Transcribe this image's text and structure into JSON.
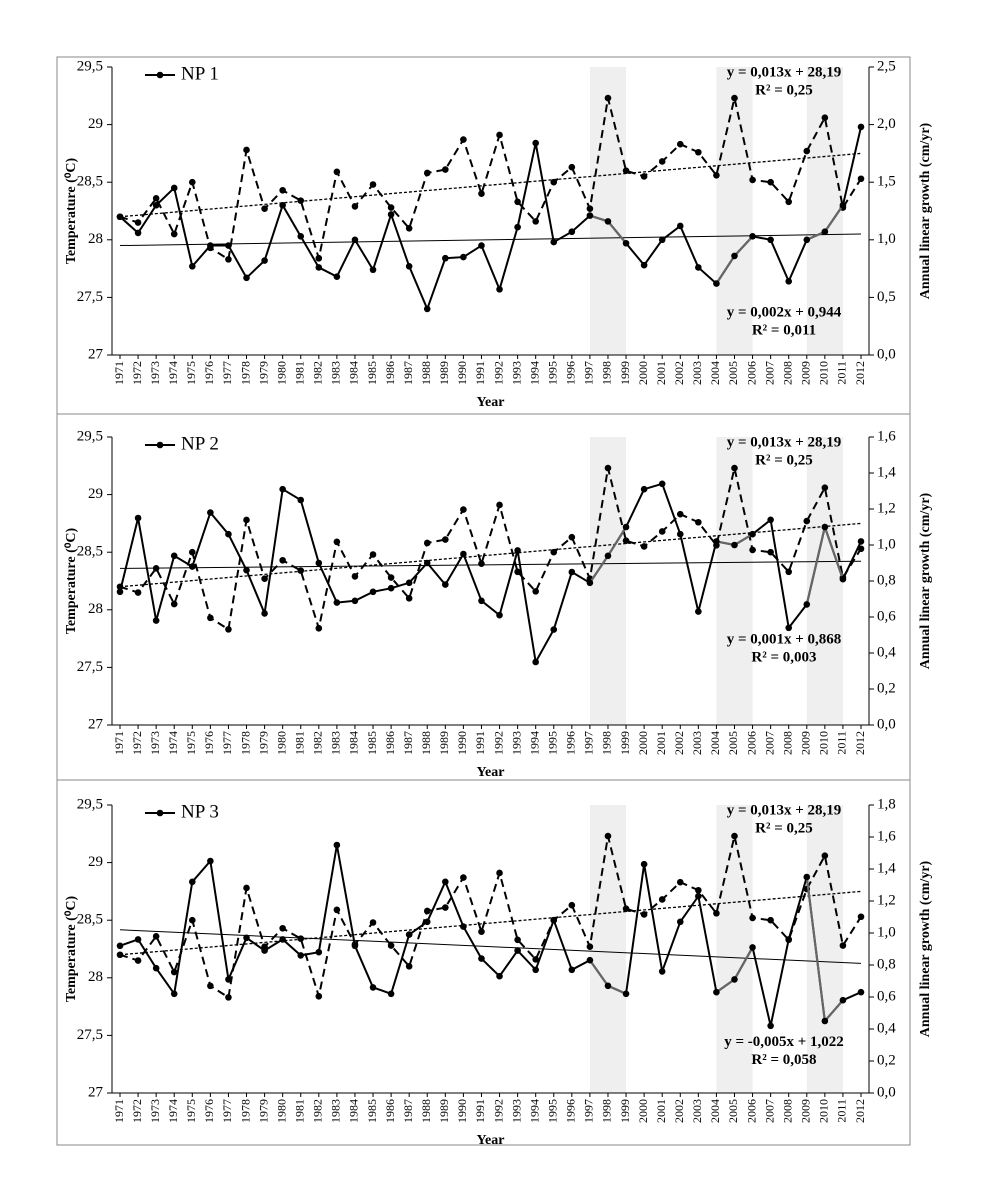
{
  "chart_data": [
    {
      "type": "line",
      "categories": [
        "1971",
        "1972",
        "1973",
        "1974",
        "1975",
        "1976",
        "1977",
        "1978",
        "1979",
        "1980",
        "1981",
        "1982",
        "1983",
        "1984",
        "1985",
        "1986",
        "1987",
        "1988",
        "1989",
        "1990",
        "1991",
        "1992",
        "1993",
        "1994",
        "1995",
        "1996",
        "1997",
        "1998",
        "1999",
        "2000",
        "2001",
        "2002",
        "2003",
        "2004",
        "2005",
        "2006",
        "2007",
        "2008",
        "2009",
        "2010",
        "2011",
        "2012"
      ],
      "x_label": "Year",
      "y_label": "Temperature (⁰C)",
      "y2_label": "Annual linear growth (cm/yr)",
      "ylim": [
        27,
        29.5
      ],
      "yticks": [
        27,
        {
          "value": 27.5,
          "label": "27,5"
        },
        28,
        {
          "value": 28.5,
          "label": "28,5"
        },
        29,
        {
          "value": 29.5,
          "label": "29,5"
        }
      ],
      "y2lim": [
        0,
        2.5
      ],
      "y2ticks": [
        {
          "value": 0,
          "label": "0,0"
        },
        {
          "value": 0.5,
          "label": "0,5"
        },
        {
          "value": 1,
          "label": "1,0"
        },
        {
          "value": 1.5,
          "label": "1,5"
        },
        {
          "value": 2,
          "label": "2,0"
        },
        {
          "value": 2.5,
          "label": "2,5"
        }
      ],
      "legend": "top-left",
      "shaded_ranges": [
        [
          "1997",
          "1999"
        ],
        [
          "2004",
          "2006"
        ],
        [
          "2009",
          "2011"
        ]
      ],
      "shade_color": "#efefef",
      "highlight_color": "#666666",
      "series": [
        {
          "color": "#000000",
          "dash": "dashed",
          "values": [
            28.2,
            28.15,
            28.36,
            28.05,
            28.5,
            27.93,
            27.83,
            28.78,
            28.27,
            28.43,
            28.34,
            27.84,
            28.59,
            28.29,
            28.48,
            28.28,
            28.1,
            28.58,
            28.61,
            28.87,
            28.4,
            28.91,
            28.33,
            28.16,
            28.5,
            28.63,
            28.27,
            29.23,
            28.6,
            28.55,
            28.68,
            28.83,
            28.76,
            28.56,
            29.23,
            28.52,
            28.5,
            28.33,
            28.77,
            29.06,
            28.28,
            28.53
          ],
          "trend": {
            "values": [
              28.2,
              28.75
            ],
            "dash": "dotted",
            "equation": "y = 0,013x + 28,19",
            "r_squared": "R² = 0,25"
          }
        },
        {
          "name": "NP 1",
          "color": "#000000",
          "axis": "y2",
          "values": [
            1.2,
            1.06,
            1.3,
            1.45,
            0.77,
            0.95,
            0.95,
            0.67,
            0.82,
            1.3,
            1.03,
            0.76,
            0.68,
            1.0,
            0.74,
            1.22,
            0.77,
            0.4,
            0.84,
            0.85,
            0.95,
            0.57,
            1.11,
            1.84,
            0.98,
            1.07,
            1.21,
            1.16,
            0.97,
            0.78,
            1.0,
            1.12,
            0.76,
            0.62,
            0.86,
            1.03,
            1.0,
            0.64,
            1.0,
            1.07,
            1.3,
            1.98
          ],
          "trend": {
            "values": [
              0.95,
              1.05
            ],
            "equation": "y = 0,002x + 0,944",
            "r_squared": "R² = 0,011"
          }
        }
      ]
    },
    {
      "type": "line",
      "categories": [
        "1971",
        "1972",
        "1973",
        "1974",
        "1975",
        "1976",
        "1977",
        "1978",
        "1979",
        "1980",
        "1981",
        "1982",
        "1983",
        "1984",
        "1985",
        "1986",
        "1987",
        "1988",
        "1989",
        "1990",
        "1991",
        "1992",
        "1993",
        "1994",
        "1995",
        "1996",
        "1997",
        "1998",
        "1999",
        "2000",
        "2001",
        "2002",
        "2003",
        "2004",
        "2005",
        "2006",
        "2007",
        "2008",
        "2009",
        "2010",
        "2011",
        "2012"
      ],
      "x_label": "Year",
      "y_label": "Temperature (⁰C)",
      "y2_label": "Annual linear growth (cm/yr)",
      "ylim": [
        27,
        29.5
      ],
      "yticks": [
        27,
        {
          "value": 27.5,
          "label": "27,5"
        },
        28,
        {
          "value": 28.5,
          "label": "28,5"
        },
        29,
        {
          "value": 29.5,
          "label": "29,5"
        }
      ],
      "y2lim": [
        0,
        1.6
      ],
      "y2ticks": [
        {
          "value": 0,
          "label": "0,0"
        },
        {
          "value": 0.2,
          "label": "0,2"
        },
        {
          "value": 0.4,
          "label": "0,4"
        },
        {
          "value": 0.6,
          "label": "0,6"
        },
        {
          "value": 0.8,
          "label": "0,8"
        },
        {
          "value": 1,
          "label": "1,0"
        },
        {
          "value": 1.2,
          "label": "1,2"
        },
        {
          "value": 1.4,
          "label": "1,4"
        },
        {
          "value": 1.6,
          "label": "1,6"
        }
      ],
      "legend": "top-left",
      "shaded_ranges": [
        [
          "1997",
          "1999"
        ],
        [
          "2004",
          "2006"
        ],
        [
          "2009",
          "2011"
        ]
      ],
      "shade_color": "#efefef",
      "highlight_color": "#666666",
      "series": [
        {
          "color": "#000000",
          "dash": "dashed",
          "values": [
            28.2,
            28.15,
            28.36,
            28.05,
            28.5,
            27.93,
            27.83,
            28.78,
            28.27,
            28.43,
            28.34,
            27.84,
            28.59,
            28.29,
            28.48,
            28.28,
            28.1,
            28.58,
            28.61,
            28.87,
            28.4,
            28.91,
            28.33,
            28.16,
            28.5,
            28.63,
            28.27,
            29.23,
            28.6,
            28.55,
            28.68,
            28.83,
            28.76,
            28.56,
            29.23,
            28.52,
            28.5,
            28.33,
            28.77,
            29.06,
            28.28,
            28.53
          ],
          "trend": {
            "values": [
              28.2,
              28.75
            ],
            "dash": "dotted",
            "equation": "y = 0,013x + 28,19",
            "r_squared": "R² = 0,25"
          }
        },
        {
          "name": "NP 2",
          "color": "#000000",
          "axis": "y2",
          "values": [
            0.74,
            1.15,
            0.58,
            0.94,
            0.88,
            1.18,
            1.06,
            0.86,
            0.62,
            1.31,
            1.25,
            0.9,
            0.68,
            0.69,
            0.74,
            0.76,
            0.79,
            0.9,
            0.78,
            0.95,
            0.69,
            0.61,
            0.97,
            0.35,
            0.53,
            0.85,
            0.79,
            0.94,
            1.1,
            1.31,
            1.34,
            1.06,
            0.63,
            1.02,
            1.0,
            1.06,
            1.14,
            0.54,
            0.67,
            1.1,
            0.81,
            1.02
          ],
          "trend": {
            "values": [
              0.87,
              0.91
            ],
            "equation": "y = 0,001x + 0,868",
            "r_squared": "R² = 0,003"
          }
        }
      ]
    },
    {
      "type": "line",
      "categories": [
        "1971",
        "1972",
        "1973",
        "1974",
        "1975",
        "1976",
        "1977",
        "1978",
        "1979",
        "1980",
        "1981",
        "1982",
        "1983",
        "1984",
        "1985",
        "1986",
        "1987",
        "1988",
        "1989",
        "1990",
        "1991",
        "1992",
        "1993",
        "1994",
        "1995",
        "1996",
        "1997",
        "1998",
        "1999",
        "2000",
        "2001",
        "2002",
        "2003",
        "2004",
        "2005",
        "2006",
        "2007",
        "2008",
        "2009",
        "2010",
        "2011",
        "2012"
      ],
      "x_label": "Year",
      "y_label": "Temperature (⁰C)",
      "y2_label": "Annual linear growth (cm/yr)",
      "ylim": [
        27,
        29.5
      ],
      "yticks": [
        27,
        {
          "value": 27.5,
          "label": "27,5"
        },
        28,
        {
          "value": 28.5,
          "label": "28,5"
        },
        29,
        {
          "value": 29.5,
          "label": "29,5"
        }
      ],
      "y2lim": [
        0,
        1.8
      ],
      "y2ticks": [
        {
          "value": 0,
          "label": "0,0"
        },
        {
          "value": 0.2,
          "label": "0,2"
        },
        {
          "value": 0.4,
          "label": "0,4"
        },
        {
          "value": 0.6,
          "label": "0,6"
        },
        {
          "value": 0.8,
          "label": "0,8"
        },
        {
          "value": 1,
          "label": "1,0"
        },
        {
          "value": 1.2,
          "label": "1,2"
        },
        {
          "value": 1.4,
          "label": "1,4"
        },
        {
          "value": 1.6,
          "label": "1,6"
        },
        {
          "value": 1.8,
          "label": "1,8"
        }
      ],
      "legend": "top-left",
      "shaded_ranges": [
        [
          "1997",
          "1999"
        ],
        [
          "2004",
          "2006"
        ],
        [
          "2009",
          "2011"
        ]
      ],
      "shade_color": "#efefef",
      "highlight_color": "#666666",
      "series": [
        {
          "color": "#000000",
          "dash": "dashed",
          "values": [
            28.2,
            28.15,
            28.36,
            28.05,
            28.5,
            27.93,
            27.83,
            28.78,
            28.27,
            28.43,
            28.34,
            27.84,
            28.59,
            28.29,
            28.48,
            28.28,
            28.1,
            28.58,
            28.61,
            28.87,
            28.4,
            28.91,
            28.33,
            28.16,
            28.5,
            28.63,
            28.27,
            29.23,
            28.6,
            28.55,
            28.68,
            28.83,
            28.76,
            28.56,
            29.23,
            28.52,
            28.5,
            28.33,
            28.77,
            29.06,
            28.28,
            28.53
          ],
          "trend": {
            "values": [
              28.2,
              28.75
            ],
            "dash": "dotted",
            "equation": "y = 0,013x + 28,19",
            "r_squared": "R² = 0,25"
          }
        },
        {
          "name": "NP 3",
          "color": "#000000",
          "axis": "y2",
          "values": [
            0.92,
            0.96,
            0.78,
            0.62,
            1.32,
            1.45,
            0.71,
            0.97,
            0.89,
            0.96,
            0.86,
            0.88,
            1.55,
            0.92,
            0.66,
            0.62,
            0.99,
            1.07,
            1.32,
            1.04,
            0.84,
            0.73,
            0.89,
            0.77,
            1.08,
            0.77,
            0.83,
            0.67,
            0.62,
            1.43,
            0.76,
            1.07,
            1.23,
            0.63,
            0.71,
            0.91,
            0.42,
            0.96,
            1.35,
            0.45,
            0.58,
            0.63
          ],
          "trend": {
            "values": [
              1.02,
              0.81
            ],
            "equation": "y = -0,005x + 1,022",
            "r_squared": "R² = 0,058"
          }
        }
      ]
    }
  ]
}
